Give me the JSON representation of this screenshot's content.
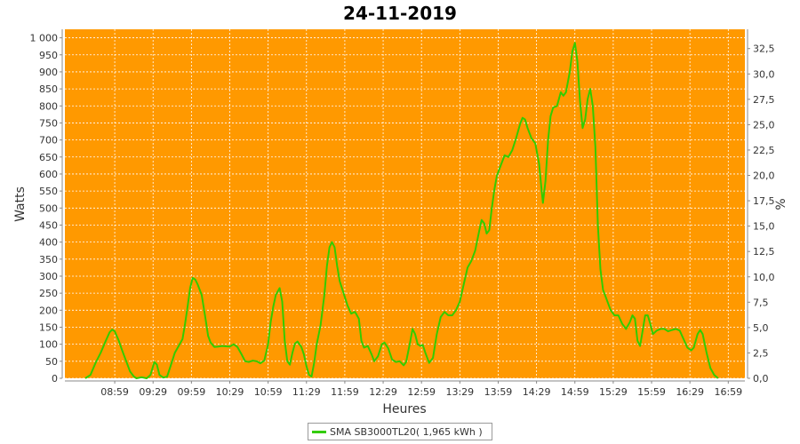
{
  "colors": {
    "plot_background": "#ff9900",
    "grid": "#ffffff",
    "series_line": "#33cc00",
    "axis": "#888888"
  },
  "chart_data": {
    "type": "line",
    "title": "24-11-2019",
    "xlabel": "Heures",
    "ylabel": "Watts",
    "y2label": "%",
    "ylim": [
      0,
      1025
    ],
    "y2lim": [
      0,
      34.4
    ],
    "xlim": [
      "08:20",
      "17:12"
    ],
    "grid": true,
    "legend_position": "bottom",
    "x_ticks": [
      "08:59",
      "09:29",
      "09:59",
      "10:29",
      "10:59",
      "11:29",
      "11:59",
      "12:29",
      "12:59",
      "13:29",
      "13:59",
      "14:29",
      "14:59",
      "15:29",
      "15:59",
      "16:29",
      "16:59"
    ],
    "y_ticks": [
      {
        "value": 0,
        "label": "0"
      },
      {
        "value": 50,
        "label": "50"
      },
      {
        "value": 100,
        "label": "100"
      },
      {
        "value": 150,
        "label": "150"
      },
      {
        "value": 200,
        "label": "200"
      },
      {
        "value": 250,
        "label": "250"
      },
      {
        "value": 300,
        "label": "300"
      },
      {
        "value": 350,
        "label": "350"
      },
      {
        "value": 400,
        "label": "400"
      },
      {
        "value": 450,
        "label": "450"
      },
      {
        "value": 500,
        "label": "500"
      },
      {
        "value": 550,
        "label": "550"
      },
      {
        "value": 600,
        "label": "600"
      },
      {
        "value": 650,
        "label": "650"
      },
      {
        "value": 700,
        "label": "700"
      },
      {
        "value": 750,
        "label": "750"
      },
      {
        "value": 800,
        "label": "800"
      },
      {
        "value": 850,
        "label": "850"
      },
      {
        "value": 900,
        "label": "900"
      },
      {
        "value": 950,
        "label": "950"
      },
      {
        "value": 1000,
        "label": "1 000"
      }
    ],
    "y2_ticks": [
      {
        "value": 0,
        "label": "0,0"
      },
      {
        "value": 2.5,
        "label": "2,5"
      },
      {
        "value": 5,
        "label": "5,0"
      },
      {
        "value": 7.5,
        "label": "7,5"
      },
      {
        "value": 10,
        "label": "10,0"
      },
      {
        "value": 12.5,
        "label": "12,5"
      },
      {
        "value": 15,
        "label": "15,0"
      },
      {
        "value": 17.5,
        "label": "17,5"
      },
      {
        "value": 20,
        "label": "20,0"
      },
      {
        "value": 22.5,
        "label": "22,5"
      },
      {
        "value": 25,
        "label": "25,0"
      },
      {
        "value": 27.5,
        "label": "27,5"
      },
      {
        "value": 30,
        "label": "30,0"
      },
      {
        "value": 32.5,
        "label": "32,5"
      }
    ],
    "series": [
      {
        "name": "SMA SB3000TL20( 1,965 kWh )",
        "points": [
          [
            "08:36",
            0
          ],
          [
            "08:40",
            10
          ],
          [
            "08:44",
            45
          ],
          [
            "08:48",
            75
          ],
          [
            "08:52",
            110
          ],
          [
            "08:55",
            135
          ],
          [
            "08:57",
            143
          ],
          [
            "08:59",
            138
          ],
          [
            "09:02",
            112
          ],
          [
            "09:05",
            80
          ],
          [
            "09:08",
            50
          ],
          [
            "09:11",
            20
          ],
          [
            "09:14",
            5
          ],
          [
            "09:16",
            0
          ],
          [
            "09:20",
            3
          ],
          [
            "09:24",
            0
          ],
          [
            "09:27",
            10
          ],
          [
            "09:30",
            48
          ],
          [
            "09:32",
            40
          ],
          [
            "09:34",
            10
          ],
          [
            "09:37",
            2
          ],
          [
            "09:40",
            5
          ],
          [
            "09:43",
            40
          ],
          [
            "09:46",
            75
          ],
          [
            "09:49",
            95
          ],
          [
            "09:52",
            115
          ],
          [
            "09:54",
            160
          ],
          [
            "09:56",
            210
          ],
          [
            "09:58",
            265
          ],
          [
            "10:00",
            295
          ],
          [
            "10:02",
            290
          ],
          [
            "10:04",
            275
          ],
          [
            "10:07",
            245
          ],
          [
            "10:10",
            175
          ],
          [
            "10:12",
            125
          ],
          [
            "10:14",
            105
          ],
          [
            "10:17",
            92
          ],
          [
            "10:20",
            93
          ],
          [
            "10:23",
            95
          ],
          [
            "10:26",
            94
          ],
          [
            "10:29",
            93
          ],
          [
            "10:32",
            100
          ],
          [
            "10:35",
            92
          ],
          [
            "10:38",
            72
          ],
          [
            "10:41",
            50
          ],
          [
            "10:44",
            48
          ],
          [
            "10:47",
            52
          ],
          [
            "10:50",
            50
          ],
          [
            "10:53",
            44
          ],
          [
            "10:56",
            52
          ],
          [
            "10:59",
            100
          ],
          [
            "11:01",
            165
          ],
          [
            "11:03",
            210
          ],
          [
            "11:05",
            245
          ],
          [
            "11:08",
            265
          ],
          [
            "11:10",
            225
          ],
          [
            "11:12",
            110
          ],
          [
            "11:14",
            50
          ],
          [
            "11:16",
            40
          ],
          [
            "11:18",
            75
          ],
          [
            "11:20",
            102
          ],
          [
            "11:22",
            108
          ],
          [
            "11:25",
            92
          ],
          [
            "11:27",
            70
          ],
          [
            "11:29",
            35
          ],
          [
            "11:31",
            10
          ],
          [
            "11:33",
            5
          ],
          [
            "11:35",
            45
          ],
          [
            "11:37",
            100
          ],
          [
            "11:40",
            155
          ],
          [
            "11:43",
            245
          ],
          [
            "11:45",
            330
          ],
          [
            "11:47",
            385
          ],
          [
            "11:49",
            400
          ],
          [
            "11:51",
            385
          ],
          [
            "11:53",
            330
          ],
          [
            "11:55",
            285
          ],
          [
            "11:58",
            250
          ],
          [
            "12:01",
            215
          ],
          [
            "12:04",
            190
          ],
          [
            "12:07",
            195
          ],
          [
            "12:10",
            175
          ],
          [
            "12:12",
            110
          ],
          [
            "12:14",
            90
          ],
          [
            "12:17",
            95
          ],
          [
            "12:20",
            70
          ],
          [
            "12:22",
            50
          ],
          [
            "12:25",
            65
          ],
          [
            "12:28",
            100
          ],
          [
            "12:30",
            105
          ],
          [
            "12:33",
            88
          ],
          [
            "12:36",
            55
          ],
          [
            "12:39",
            48
          ],
          [
            "12:42",
            50
          ],
          [
            "12:45",
            38
          ],
          [
            "12:47",
            48
          ],
          [
            "12:50",
            105
          ],
          [
            "12:52",
            145
          ],
          [
            "12:54",
            130
          ],
          [
            "12:56",
            100
          ],
          [
            "12:58",
            95
          ],
          [
            "13:00",
            98
          ],
          [
            "13:02",
            75
          ],
          [
            "13:05",
            45
          ],
          [
            "13:08",
            60
          ],
          [
            "13:11",
            130
          ],
          [
            "13:14",
            180
          ],
          [
            "13:17",
            195
          ],
          [
            "13:20",
            185
          ],
          [
            "13:23",
            185
          ],
          [
            "13:26",
            200
          ],
          [
            "13:29",
            225
          ],
          [
            "13:32",
            275
          ],
          [
            "13:35",
            325
          ],
          [
            "13:38",
            345
          ],
          [
            "13:41",
            375
          ],
          [
            "13:44",
            430
          ],
          [
            "13:46",
            465
          ],
          [
            "13:48",
            455
          ],
          [
            "13:50",
            425
          ],
          [
            "13:52",
            435
          ],
          [
            "13:54",
            500
          ],
          [
            "13:56",
            555
          ],
          [
            "13:58",
            595
          ],
          [
            "14:01",
            625
          ],
          [
            "14:04",
            655
          ],
          [
            "14:07",
            650
          ],
          [
            "14:10",
            670
          ],
          [
            "14:13",
            705
          ],
          [
            "14:16",
            745
          ],
          [
            "14:18",
            765
          ],
          [
            "14:20",
            760
          ],
          [
            "14:22",
            735
          ],
          [
            "14:25",
            705
          ],
          [
            "14:28",
            690
          ],
          [
            "14:31",
            630
          ],
          [
            "14:33",
            550
          ],
          [
            "14:34",
            515
          ],
          [
            "14:36",
            580
          ],
          [
            "14:38",
            700
          ],
          [
            "14:40",
            770
          ],
          [
            "14:42",
            795
          ],
          [
            "14:45",
            800
          ],
          [
            "14:48",
            840
          ],
          [
            "14:50",
            830
          ],
          [
            "14:52",
            840
          ],
          [
            "14:55",
            900
          ],
          [
            "14:57",
            960
          ],
          [
            "14:59",
            985
          ],
          [
            "15:01",
            930
          ],
          [
            "15:03",
            815
          ],
          [
            "15:05",
            735
          ],
          [
            "15:07",
            760
          ],
          [
            "15:09",
            820
          ],
          [
            "15:11",
            850
          ],
          [
            "15:13",
            800
          ],
          [
            "15:15",
            680
          ],
          [
            "15:17",
            450
          ],
          [
            "15:19",
            320
          ],
          [
            "15:21",
            260
          ],
          [
            "15:24",
            230
          ],
          [
            "15:27",
            200
          ],
          [
            "15:30",
            185
          ],
          [
            "15:33",
            185
          ],
          [
            "15:36",
            160
          ],
          [
            "15:39",
            145
          ],
          [
            "15:42",
            165
          ],
          [
            "15:44",
            185
          ],
          [
            "15:46",
            175
          ],
          [
            "15:48",
            110
          ],
          [
            "15:50",
            95
          ],
          [
            "15:52",
            140
          ],
          [
            "15:54",
            185
          ],
          [
            "15:56",
            185
          ],
          [
            "15:58",
            160
          ],
          [
            "16:00",
            130
          ],
          [
            "16:03",
            140
          ],
          [
            "16:06",
            145
          ],
          [
            "16:09",
            145
          ],
          [
            "16:12",
            138
          ],
          [
            "16:15",
            142
          ],
          [
            "16:18",
            145
          ],
          [
            "16:21",
            140
          ],
          [
            "16:24",
            115
          ],
          [
            "16:27",
            90
          ],
          [
            "16:30",
            82
          ],
          [
            "16:32",
            90
          ],
          [
            "16:35",
            130
          ],
          [
            "16:37",
            142
          ],
          [
            "16:39",
            130
          ],
          [
            "16:42",
            75
          ],
          [
            "16:45",
            30
          ],
          [
            "16:48",
            10
          ],
          [
            "16:51",
            0
          ]
        ]
      }
    ]
  }
}
